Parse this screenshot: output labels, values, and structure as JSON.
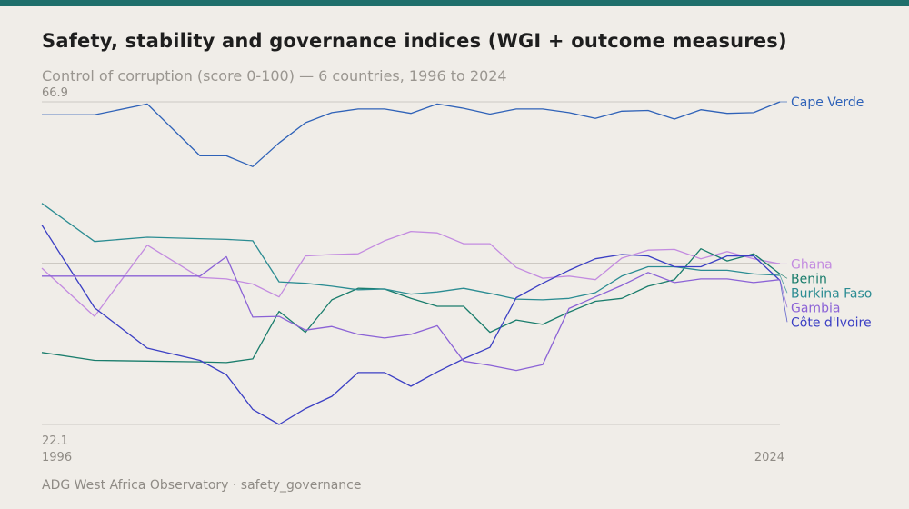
{
  "header": {
    "title": "Safety, stability and governance indices (WGI + outcome measures)",
    "subtitle": "Control of corruption (score 0-100) — 6 countries, 1996 to 2024"
  },
  "footer": {
    "source": "ADG West Africa Observatory · safety_governance"
  },
  "colors": {
    "top_bar": "#1f6f6b",
    "background": "#f0ede8"
  },
  "chart_data": {
    "type": "line",
    "ylim": [
      22.1,
      66.9
    ],
    "y_tick_labels": [
      "66.9",
      "22.1"
    ],
    "x_tick_labels": [
      "1996",
      "2024"
    ],
    "x": [
      1996,
      1998,
      2000,
      2002,
      2003,
      2004,
      2005,
      2006,
      2007,
      2008,
      2009,
      2010,
      2011,
      2012,
      2013,
      2014,
      2015,
      2016,
      2017,
      2018,
      2019,
      2020,
      2021,
      2022,
      2023,
      2024
    ],
    "grid": "horizontal",
    "legend": "direct labels at right",
    "series": [
      {
        "name": "Cape Verde",
        "color": "#2f62b8",
        "values": [
          65.1,
          65.1,
          66.6,
          59.4,
          59.4,
          57.9,
          61.2,
          64.0,
          65.4,
          65.9,
          65.9,
          65.3,
          66.6,
          66.0,
          65.2,
          65.9,
          65.9,
          65.4,
          64.6,
          65.6,
          65.7,
          64.5,
          65.8,
          65.3,
          65.4,
          66.9
        ]
      },
      {
        "name": "Ghana",
        "color": "#c38be0",
        "values": [
          43.8,
          37.1,
          47.0,
          42.5,
          42.3,
          41.6,
          39.8,
          45.5,
          45.7,
          45.8,
          47.6,
          48.9,
          48.7,
          47.2,
          47.2,
          43.9,
          42.4,
          42.7,
          42.2,
          45.2,
          46.3,
          46.4,
          45.1,
          46.1,
          45.1,
          44.4
        ]
      },
      {
        "name": "Benin",
        "color": "#1a7d6c",
        "values": [
          32.1,
          31.0,
          30.9,
          30.8,
          30.7,
          31.2,
          37.8,
          34.9,
          39.4,
          41.0,
          40.9,
          39.6,
          38.5,
          38.5,
          34.9,
          36.6,
          36.0,
          37.7,
          39.2,
          39.6,
          41.3,
          42.2,
          46.5,
          44.8,
          45.8,
          43.0
        ]
      },
      {
        "name": "Burkina Faso",
        "color": "#2b8c92",
        "values": [
          52.8,
          47.5,
          48.1,
          47.9,
          47.8,
          47.6,
          41.9,
          41.7,
          41.3,
          40.8,
          40.9,
          40.2,
          40.5,
          41.0,
          40.3,
          39.5,
          39.4,
          39.6,
          40.4,
          42.7,
          44.0,
          44.0,
          43.5,
          43.5,
          43.0,
          42.8
        ]
      },
      {
        "name": "Côte d'Ivoire",
        "color": "#3b3fc4",
        "values": [
          49.8,
          38.3,
          32.7,
          31.0,
          29.0,
          24.2,
          22.1,
          24.3,
          26.0,
          29.3,
          29.3,
          27.4,
          29.4,
          31.2,
          32.8,
          39.7,
          41.7,
          43.5,
          45.1,
          45.7,
          45.5,
          44.0,
          44.0,
          45.5,
          45.5,
          42.1
        ]
      },
      {
        "name": "Gambia",
        "color": "#8b62d6",
        "values": [
          42.7,
          42.7,
          42.7,
          42.7,
          45.4,
          37.0,
          37.1,
          35.2,
          35.7,
          34.6,
          34.1,
          34.6,
          35.8,
          30.9,
          30.3,
          29.6,
          30.4,
          38.2,
          39.8,
          41.4,
          43.2,
          41.8,
          42.3,
          42.3,
          41.8,
          42.2
        ]
      }
    ]
  }
}
